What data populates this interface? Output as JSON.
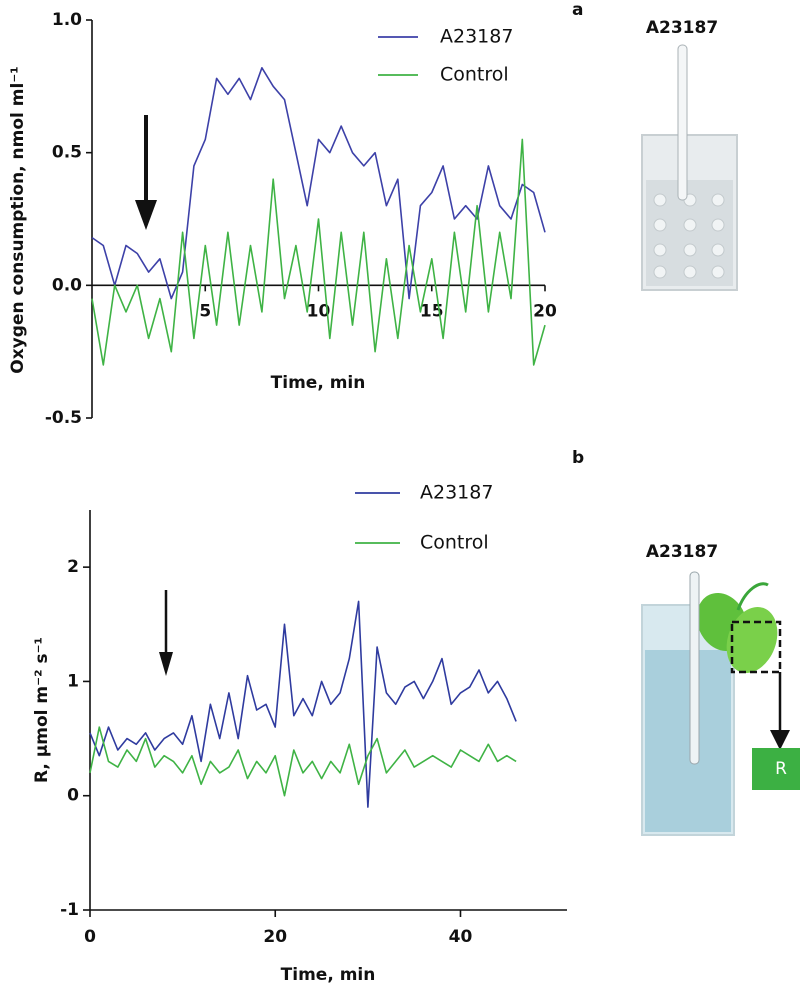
{
  "chart_data": [
    {
      "type": "line",
      "panel_label": "a",
      "illustration_label": "A23187",
      "y_label": "Oxygen consumption, nmol ml⁻¹",
      "x_label": "Time, min",
      "xlim": [
        0,
        20
      ],
      "xticks": [
        5,
        10,
        15,
        20
      ],
      "ylim": [
        -0.5,
        1
      ],
      "yticks": [
        {
          "value": -0.5,
          "label": "-0.5"
        },
        {
          "value": 0,
          "label": "0.0"
        },
        0.5,
        {
          "value": 1,
          "label": "1.0"
        }
      ],
      "x": [
        0,
        0.5,
        1,
        1.5,
        2,
        2.5,
        3,
        3.5,
        4,
        4.5,
        5,
        5.5,
        6,
        6.5,
        7,
        7.5,
        8,
        8.5,
        9,
        9.5,
        10,
        10.5,
        11,
        11.5,
        12,
        12.5,
        13,
        13.5,
        14,
        14.5,
        15,
        15.5,
        16,
        16.5,
        17,
        17.5,
        18,
        18.5,
        19,
        19.5,
        20
      ],
      "series": [
        {
          "name": "A23187",
          "color": "#3d41a8",
          "values": [
            0.18,
            0.15,
            0.0,
            0.15,
            0.12,
            0.05,
            0.1,
            -0.05,
            0.05,
            0.45,
            0.55,
            0.78,
            0.72,
            0.78,
            0.7,
            0.82,
            0.75,
            0.7,
            0.5,
            0.3,
            0.55,
            0.5,
            0.6,
            0.5,
            0.45,
            0.5,
            0.3,
            0.4,
            -0.05,
            0.3,
            0.35,
            0.45,
            0.25,
            0.3,
            0.25,
            0.45,
            0.3,
            0.25,
            0.38,
            0.35,
            0.2
          ]
        },
        {
          "name": "Control",
          "color": "#3fb345",
          "values": [
            -0.05,
            -0.3,
            0.0,
            -0.1,
            0.0,
            -0.2,
            -0.05,
            -0.25,
            0.2,
            -0.2,
            0.15,
            -0.15,
            0.2,
            -0.15,
            0.15,
            -0.1,
            0.4,
            -0.05,
            0.15,
            -0.1,
            0.25,
            -0.2,
            0.2,
            -0.15,
            0.2,
            -0.25,
            0.1,
            -0.2,
            0.15,
            -0.1,
            0.1,
            -0.2,
            0.2,
            -0.1,
            0.3,
            -0.1,
            0.2,
            -0.05,
            0.55,
            -0.3,
            -0.15
          ]
        }
      ]
    },
    {
      "type": "line",
      "panel_label": "b",
      "illustration_label": "A23187",
      "output_label": "R",
      "y_label": "R, µmol m⁻² s⁻¹",
      "x_label": "Time, min",
      "xlim": [
        0,
        51.5
      ],
      "xticks": [
        0,
        20,
        40
      ],
      "ylim": [
        -1,
        2.5
      ],
      "yticks": [
        -1,
        0,
        1,
        2
      ],
      "x": [
        0,
        1,
        2,
        3,
        4,
        5,
        6,
        7,
        8,
        9,
        10,
        11,
        12,
        13,
        14,
        15,
        16,
        17,
        18,
        19,
        20,
        21,
        22,
        23,
        24,
        25,
        26,
        27,
        28,
        29,
        30,
        31,
        32,
        33,
        34,
        35,
        36,
        37,
        38,
        39,
        40,
        41,
        42,
        43,
        44,
        45,
        46
      ],
      "series": [
        {
          "name": "A23187",
          "color": "#2f3b9f",
          "values": [
            0.55,
            0.35,
            0.6,
            0.4,
            0.5,
            0.45,
            0.55,
            0.4,
            0.5,
            0.55,
            0.45,
            0.7,
            0.3,
            0.8,
            0.5,
            0.9,
            0.5,
            1.05,
            0.75,
            0.8,
            0.6,
            1.5,
            0.7,
            0.85,
            0.7,
            1.0,
            0.8,
            0.9,
            1.2,
            1.7,
            -0.1,
            1.3,
            0.9,
            0.8,
            0.95,
            1.0,
            0.85,
            1.0,
            1.2,
            0.8,
            0.9,
            0.95,
            1.1,
            0.9,
            1.0,
            0.85,
            0.65
          ]
        },
        {
          "name": "Control",
          "color": "#3fb345",
          "values": [
            0.2,
            0.6,
            0.3,
            0.25,
            0.4,
            0.3,
            0.5,
            0.25,
            0.35,
            0.3,
            0.2,
            0.35,
            0.1,
            0.3,
            0.2,
            0.25,
            0.4,
            0.15,
            0.3,
            0.2,
            0.35,
            0.0,
            0.4,
            0.2,
            0.3,
            0.15,
            0.3,
            0.2,
            0.45,
            0.1,
            0.35,
            0.5,
            0.2,
            0.3,
            0.4,
            0.25,
            0.3,
            0.35,
            0.3,
            0.25,
            0.4,
            0.35,
            0.3,
            0.45,
            0.3,
            0.35,
            0.3
          ]
        }
      ]
    }
  ]
}
